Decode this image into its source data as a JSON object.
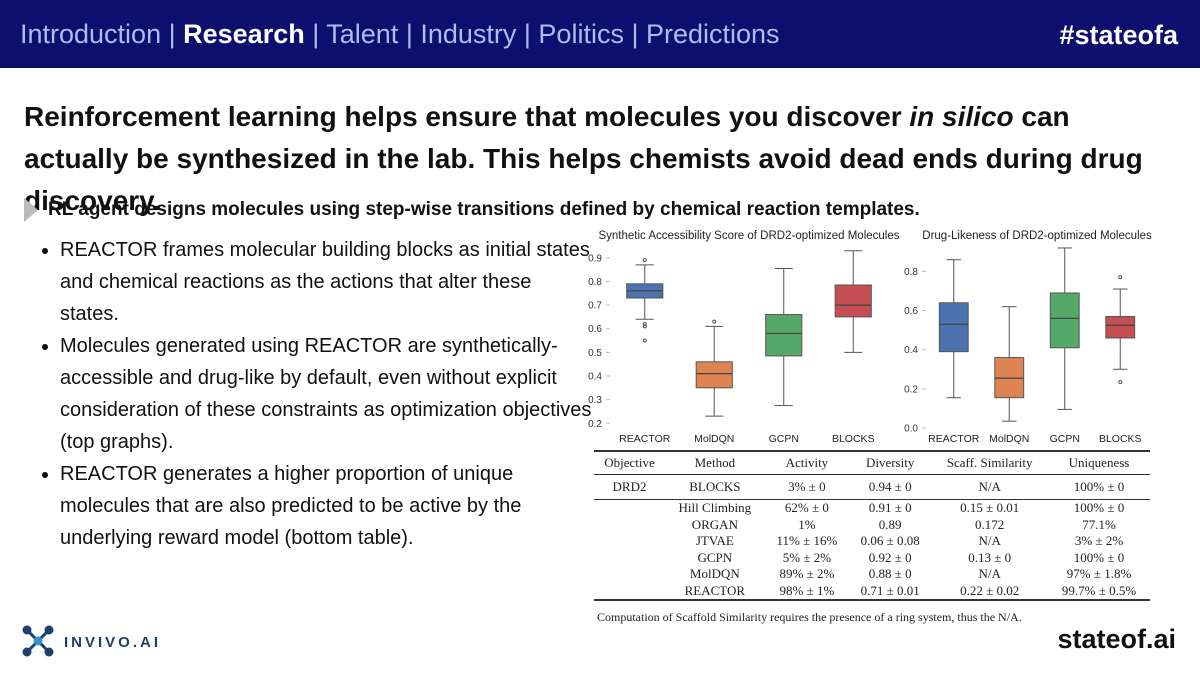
{
  "nav": {
    "items": [
      "Introduction",
      "Research",
      "Talent",
      "Industry",
      "Politics",
      "Predictions"
    ],
    "hashtag": "#stateofa"
  },
  "title": [
    "Reinforcement learning helps ensure that molecules you discover ",
    "in silico",
    " can actually be synthesized in the lab. This helps chemists avoid dead ends during drug discovery."
  ],
  "subtitle": "RL agent designs molecules using step-wise transitions defined by chemical reaction templates.",
  "bullets": [
    "REACTOR frames molecular building blocks as initial states and chemical reactions as the actions that alter these states.",
    "Molecules generated using REACTOR are synthetically-accessible and drug-like by default, even without explicit consideration of these constraints as optimization objectives (top graphs).",
    "REACTOR generates a higher proportion of unique molecules that are also predicted to be active by the underlying reward model (bottom table)."
  ],
  "chart_data": [
    {
      "type": "box",
      "title": "Synthetic Accessibility Score of DRD2-optimized Molecules",
      "categories": [
        "REACTOR",
        "MolDQN",
        "GCPN",
        "BLOCKS"
      ],
      "colors": [
        "#4c72b0",
        "#dd8452",
        "#55a868",
        "#c44e52"
      ],
      "boxes": [
        {
          "whislo": 0.64,
          "q1": 0.73,
          "med": 0.76,
          "q3": 0.79,
          "whishi": 0.87,
          "fliers": [
            0.89,
            0.62,
            0.61,
            0.55
          ]
        },
        {
          "whislo": 0.23,
          "q1": 0.35,
          "med": 0.41,
          "q3": 0.46,
          "whishi": 0.61,
          "fliers": [
            0.63
          ]
        },
        {
          "whislo": 0.275,
          "q1": 0.485,
          "med": 0.58,
          "q3": 0.66,
          "whishi": 0.855,
          "fliers": []
        },
        {
          "whislo": 0.5,
          "q1": 0.65,
          "med": 0.7,
          "q3": 0.785,
          "whishi": 0.93,
          "fliers": []
        }
      ],
      "ylim": [
        0.18,
        0.95
      ],
      "yticks": [
        0.2,
        0.3,
        0.4,
        0.5,
        0.6,
        0.7,
        0.8,
        0.9
      ]
    },
    {
      "type": "box",
      "title": "Drug-Likeness of DRD2-optimized Molecules",
      "categories": [
        "REACTOR",
        "MolDQN",
        "GCPN",
        "BLOCKS"
      ],
      "colors": [
        "#4c72b0",
        "#dd8452",
        "#55a868",
        "#c44e52"
      ],
      "boxes": [
        {
          "whislo": 0.155,
          "q1": 0.39,
          "med": 0.53,
          "q3": 0.64,
          "whishi": 0.86,
          "fliers": []
        },
        {
          "whislo": 0.035,
          "q1": 0.155,
          "med": 0.255,
          "q3": 0.36,
          "whishi": 0.62,
          "fliers": []
        },
        {
          "whislo": 0.095,
          "q1": 0.41,
          "med": 0.56,
          "q3": 0.69,
          "whishi": 0.92,
          "fliers": []
        },
        {
          "whislo": 0.3,
          "q1": 0.46,
          "med": 0.525,
          "q3": 0.57,
          "whishi": 0.71,
          "fliers": [
            0.77,
            0.235
          ]
        }
      ],
      "ylim": [
        0,
        0.93
      ],
      "yticks": [
        {
          "value": 0,
          "label": "0.0"
        },
        0.2,
        0.4,
        0.6,
        0.8
      ]
    }
  ],
  "table": {
    "header": [
      "Objective",
      "Method",
      "Activity",
      "Diversity",
      "Scaff. Similarity",
      "Uniqueness"
    ],
    "baseline": [
      "DRD2",
      "BLOCKS",
      "3% ± 0",
      "0.94 ± 0",
      "N/A",
      "100% ± 0"
    ],
    "rows": [
      [
        "Hill Climbing",
        "62% ± 0",
        "0.91 ± 0",
        "0.15 ± 0.01",
        "100% ± 0"
      ],
      [
        "ORGAN",
        "1%",
        "0.89",
        "0.172",
        "77.1%"
      ],
      [
        "JTVAE",
        "11% ± 16%",
        "0.06 ± 0.08",
        "N/A",
        "3% ± 2%"
      ],
      [
        "GCPN",
        "5% ± 2%",
        "0.92 ± 0",
        "0.13 ± 0",
        "100% ± 0"
      ],
      [
        "MolDQN",
        "89% ± 2%",
        "0.88 ± 0",
        "N/A",
        "97% ± 1.8%"
      ],
      [
        "REACTOR",
        "98% ± 1%",
        "0.71 ± 0.01",
        "0.22 ± 0.02",
        "99.7% ± 0.5%"
      ]
    ],
    "caption": "Computation of Scaffold Similarity requires the presence of a ring system, thus the N/A."
  },
  "logo": "INVIVO.AI",
  "footer": "stateof.ai"
}
